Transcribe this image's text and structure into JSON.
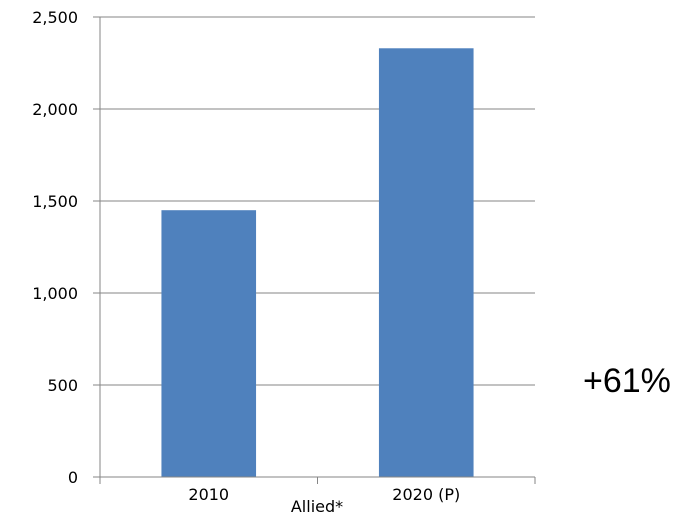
{
  "chart_data": {
    "type": "bar",
    "categories": [
      "2010",
      "2020 (P)"
    ],
    "values": [
      1450,
      2330
    ],
    "xlabel": "Allied*",
    "ylabel": "",
    "ylim": [
      0,
      2500
    ],
    "yticks": [
      0,
      500,
      1000,
      1500,
      2000,
      2500
    ],
    "ytick_labels": [
      "0",
      "500",
      "1,000",
      "1,500",
      "2,000",
      "2,500"
    ],
    "grid": true,
    "annotation": "+61%",
    "bar_color": "#4f81bd",
    "grid_color": "#868686"
  }
}
